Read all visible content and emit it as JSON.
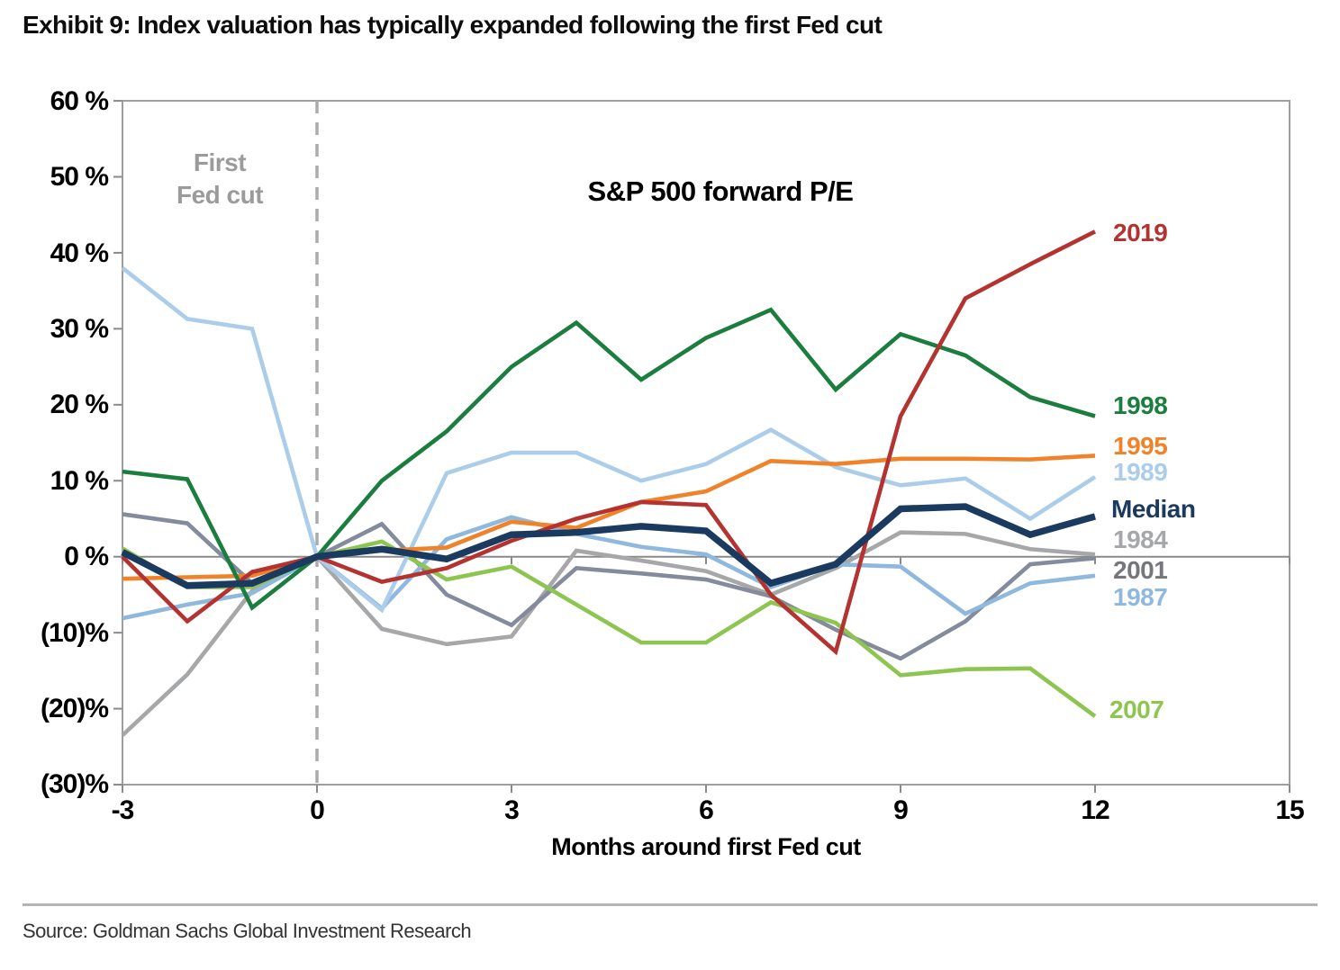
{
  "header": {
    "title": "Exhibit 9: Index valuation has typically expanded following the first Fed cut"
  },
  "chart": {
    "annotation": {
      "line1": "First",
      "line2": "Fed cut"
    }
  },
  "chart_data": {
    "type": "line",
    "title": "S&P 500 forward P/E",
    "xlabel": "Months around first Fed cut",
    "x_range": [
      -3,
      15
    ],
    "y_range": [
      -30,
      60
    ],
    "grid": "off",
    "legend_position": "right-of-lines",
    "months": [
      -3,
      -2,
      -1,
      0,
      1,
      2,
      3,
      4,
      5,
      6,
      7,
      8,
      9,
      10,
      11,
      12
    ],
    "x_ticks": [
      {
        "value": -3,
        "label": "-3"
      },
      {
        "value": 0,
        "label": "0"
      },
      {
        "value": 3,
        "label": "3"
      },
      {
        "value": 6,
        "label": "6"
      },
      {
        "value": 9,
        "label": "9"
      },
      {
        "value": 12,
        "label": "12"
      },
      {
        "value": 15,
        "label": "15"
      }
    ],
    "y_ticks": [
      {
        "value": 60,
        "label": "60 %"
      },
      {
        "value": 50,
        "label": "50 %"
      },
      {
        "value": 40,
        "label": "40 %"
      },
      {
        "value": 30,
        "label": "30 %"
      },
      {
        "value": 20,
        "label": "20 %"
      },
      {
        "value": 10,
        "label": "10 %"
      },
      {
        "value": 0,
        "label": "0 %"
      },
      {
        "value": -10,
        "label": "(10)%"
      },
      {
        "value": -20,
        "label": "(20)%"
      },
      {
        "value": -30,
        "label": "(30)%"
      }
    ],
    "series": [
      {
        "name": "1984",
        "color": "#a6a7a9",
        "label_color": "#a6a7a9",
        "width": 4.6,
        "values": [
          -23.5,
          -15.5,
          -4.5,
          0,
          -9.5,
          -11.5,
          -10.5,
          0.8,
          -0.5,
          -1.9,
          -5,
          -1.5,
          3.2,
          3,
          1,
          0.3
        ]
      },
      {
        "name": "2001",
        "color": "#838b9c",
        "label_color": "#76777a",
        "width": 4.6,
        "values": [
          5.6,
          4.4,
          -3.5,
          0,
          4.3,
          -5,
          -9,
          -1.5,
          -2.2,
          -3,
          -5.2,
          -9.6,
          -13.4,
          -8.5,
          -1,
          -0.2
        ]
      },
      {
        "name": "1987",
        "color": "#8fb8de",
        "label_color": "#8fb8de",
        "width": 4.6,
        "values": [
          -8.1,
          -6.3,
          -4.8,
          0,
          -6.8,
          2.3,
          5.2,
          3,
          1.3,
          0.3,
          -4,
          -1,
          -1.3,
          -7.5,
          -3.5,
          -2.5
        ]
      },
      {
        "name": "2007",
        "color": "#8ec551",
        "label_color": "#8ec551",
        "width": 4.6,
        "values": [
          1.1,
          -4,
          -4,
          0,
          2,
          -3,
          -1.3,
          -6.3,
          -11.3,
          -11.3,
          -6,
          -8.7,
          -15.6,
          -14.8,
          -14.7,
          -21
        ]
      },
      {
        "name": "1989",
        "color": "#abcdea",
        "label_color": "#abcdea",
        "width": 4.6,
        "values": [
          38,
          31.3,
          30,
          0,
          -7,
          11,
          13.7,
          13.7,
          10,
          12.2,
          16.7,
          11.8,
          9.4,
          10.3,
          5,
          10.5
        ]
      },
      {
        "name": "1995",
        "color": "#f0832a",
        "label_color": "#f0832a",
        "width": 4.6,
        "values": [
          -2.9,
          -2.7,
          -2.5,
          0,
          0.8,
          1.2,
          4.6,
          3.8,
          7.2,
          8.6,
          12.6,
          12.2,
          12.9,
          12.9,
          12.8,
          13.3
        ]
      },
      {
        "name": "1998",
        "color": "#1b7e3f",
        "label_color": "#1b7e3f",
        "width": 4.6,
        "values": [
          11.2,
          10.2,
          -6.7,
          0,
          10,
          16.5,
          25,
          30.8,
          23.3,
          28.8,
          32.5,
          22,
          29.3,
          26.5,
          21,
          18.5
        ]
      },
      {
        "name": "2019",
        "color": "#b43331",
        "label_color": "#b43331",
        "width": 4.6,
        "values": [
          0,
          -8.5,
          -2,
          0,
          -3.3,
          -1.5,
          2.1,
          5,
          7.2,
          6.8,
          -5,
          -12.5,
          18.5,
          34,
          38.5,
          42.8
        ]
      },
      {
        "name": "Median",
        "color": "#1b3a60",
        "label_color": "#1b3a60",
        "width": 7.5,
        "values": [
          0.6,
          -3.8,
          -3.5,
          0,
          1,
          -0.3,
          2.9,
          3.2,
          4,
          3.4,
          -3.5,
          -1,
          6.3,
          6.6,
          2.9,
          5.3
        ]
      }
    ]
  },
  "footer": {
    "source": "Source: Goldman Sachs Global Investment Research"
  }
}
